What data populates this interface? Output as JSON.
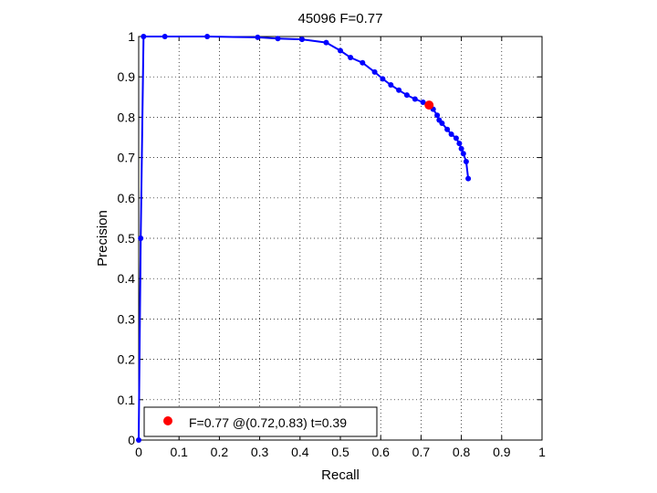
{
  "chart_data": {
    "type": "line",
    "title": "45096 F=0.77",
    "xlabel": "Recall",
    "ylabel": "Precision",
    "xlim": [
      0,
      1
    ],
    "ylim": [
      0,
      1
    ],
    "xticks": [
      "0",
      "0.1",
      "0.2",
      "0.3",
      "0.4",
      "0.5",
      "0.6",
      "0.7",
      "0.8",
      "0.9",
      "1"
    ],
    "yticks": [
      "0",
      "0.1",
      "0.2",
      "0.3",
      "0.4",
      "0.5",
      "0.6",
      "0.7",
      "0.8",
      "0.9",
      "1"
    ],
    "grid": true,
    "grid_style": "dotted",
    "series_color": "#0000ff",
    "highlight_color": "#ff0000",
    "series": [
      {
        "x": [
          0.0,
          0.005,
          0.012,
          0.065,
          0.17,
          0.295,
          0.345,
          0.405,
          0.465,
          0.5,
          0.525,
          0.555,
          0.585,
          0.605,
          0.625,
          0.645,
          0.665,
          0.685,
          0.705,
          0.72,
          0.73,
          0.74,
          0.745,
          0.752,
          0.765,
          0.775,
          0.787,
          0.795,
          0.8,
          0.805,
          0.812,
          0.817
        ],
        "y": [
          0.0,
          0.5,
          1.0,
          1.0,
          1.0,
          0.998,
          0.995,
          0.993,
          0.985,
          0.965,
          0.948,
          0.935,
          0.912,
          0.895,
          0.88,
          0.867,
          0.855,
          0.845,
          0.837,
          0.83,
          0.82,
          0.805,
          0.793,
          0.785,
          0.77,
          0.758,
          0.748,
          0.735,
          0.722,
          0.71,
          0.69,
          0.648
        ]
      }
    ],
    "highlight_point": {
      "x": 0.72,
      "y": 0.83
    },
    "legend": {
      "text": "F=0.77 @(0.72,0.83) t=0.39",
      "placement": "bottom-left"
    }
  }
}
